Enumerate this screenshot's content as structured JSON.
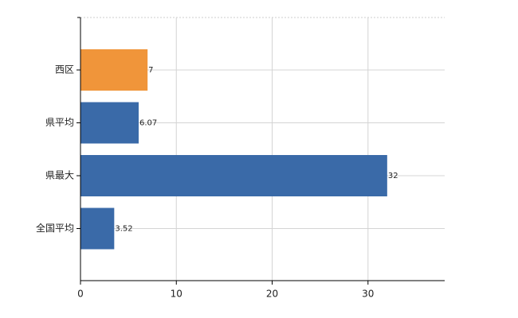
{
  "chart_data": {
    "type": "bar",
    "orientation": "horizontal",
    "categories": [
      "西区",
      "県平均",
      "県最大",
      "全国平均"
    ],
    "values": [
      7,
      6.07,
      32,
      3.52
    ],
    "colors": [
      "#f0953a",
      "#3a6aa8",
      "#3a6aa8",
      "#3a6aa8"
    ],
    "xlim": [
      0,
      38
    ],
    "xticks": [
      0,
      10,
      20,
      30
    ],
    "grid": true
  }
}
